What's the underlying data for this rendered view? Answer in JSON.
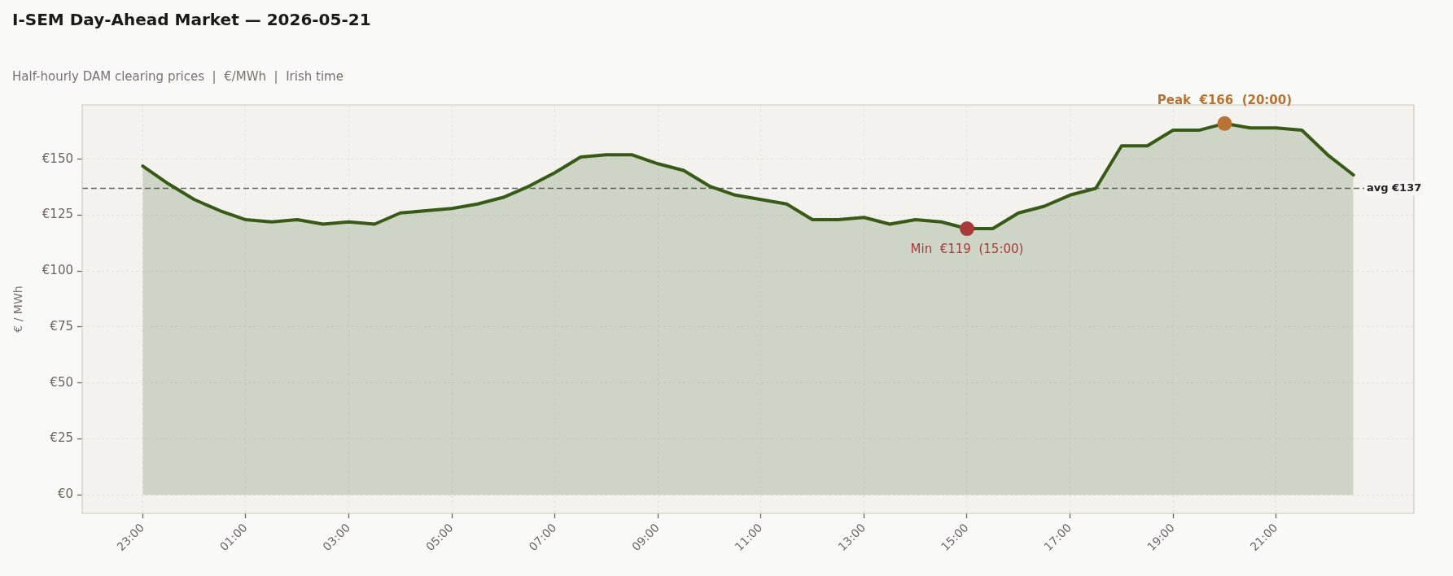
{
  "chart_data": {
    "type": "area",
    "title": "I-SEM Day-Ahead Market — 2026-05-21",
    "subtitle": "Half-hourly DAM clearing prices  |  €/MWh  |  Irish time",
    "ylabel": "€ / MWh",
    "categories": [
      "23:00",
      null,
      null,
      null,
      "01:00",
      null,
      null,
      null,
      "03:00",
      null,
      null,
      null,
      "05:00",
      null,
      null,
      null,
      "07:00",
      null,
      null,
      null,
      "09:00",
      null,
      null,
      null,
      "11:00",
      null,
      null,
      null,
      "13:00",
      null,
      null,
      null,
      "15:00",
      null,
      null,
      null,
      "17:00",
      null,
      null,
      null,
      "19:00",
      null,
      null,
      null,
      "21:00",
      null,
      null,
      null
    ],
    "series": [
      {
        "color": "#375a17",
        "values": [
          147,
          139,
          132,
          127,
          123,
          122,
          123,
          121,
          122,
          121,
          126,
          127,
          128,
          130,
          133,
          138,
          144,
          151,
          152,
          152,
          148,
          145,
          138,
          134,
          132,
          130,
          123,
          123,
          124,
          121,
          123,
          122,
          119,
          119,
          126,
          129,
          134,
          137,
          156,
          156,
          163,
          163,
          166,
          164,
          164,
          163,
          152,
          143
        ]
      },
      {
        "type": "scatter",
        "color": "#b87332",
        "marker": "circle",
        "values": [
          null,
          null,
          null,
          null,
          null,
          null,
          null,
          null,
          null,
          null,
          null,
          null,
          null,
          null,
          null,
          null,
          null,
          null,
          null,
          null,
          null,
          null,
          null,
          null,
          null,
          null,
          null,
          null,
          null,
          null,
          null,
          null,
          null,
          null,
          null,
          null,
          null,
          null,
          null,
          null,
          null,
          null,
          166,
          null,
          null,
          null,
          null,
          null
        ]
      },
      {
        "type": "scatter",
        "color": "#a83a3a",
        "marker": "circle",
        "values": [
          null,
          null,
          null,
          null,
          null,
          null,
          null,
          null,
          null,
          null,
          null,
          null,
          null,
          null,
          null,
          null,
          null,
          null,
          null,
          null,
          null,
          null,
          null,
          null,
          null,
          null,
          null,
          null,
          null,
          null,
          null,
          null,
          119,
          null,
          null,
          null,
          null,
          null,
          null,
          null,
          null,
          null,
          null,
          null,
          null,
          null,
          null,
          null
        ]
      }
    ],
    "ylim": [
      -8.3,
      174.3
    ],
    "yticks": [
      {
        "value": 0,
        "label": "€0"
      },
      {
        "value": 25,
        "label": "€25"
      },
      {
        "value": 50,
        "label": "€50"
      },
      {
        "value": 75,
        "label": "€75"
      },
      {
        "value": 100,
        "label": "€100"
      },
      {
        "value": 125,
        "label": "€125"
      },
      {
        "value": 150,
        "label": "€150"
      }
    ],
    "ref_lines": [
      {
        "axis": "y",
        "value": 137,
        "label": "avg €137",
        "color": "#666666",
        "line_style": "dashed"
      }
    ],
    "annotations": [
      {
        "text": "Peak  €166  (20:00)",
        "y": 166
      },
      {
        "text": "Min  €119  (15:00)",
        "x": "15:00",
        "y": 119
      }
    ],
    "grid": true,
    "legend": false,
    "line_style": "solid"
  }
}
